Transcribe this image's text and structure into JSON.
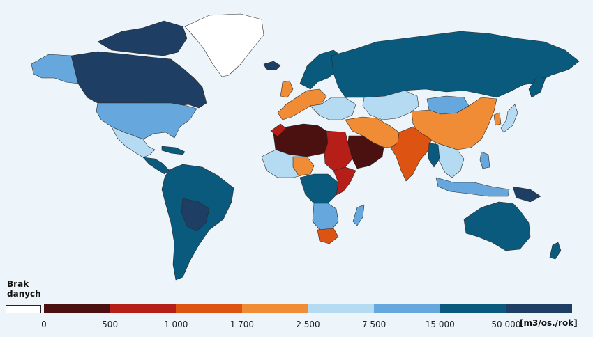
{
  "legend": {
    "no_data_label": "Brak\ndanych",
    "no_data_color": "#ffffff",
    "classes": [
      {
        "from": "0",
        "to": "500",
        "color": "#4b1010"
      },
      {
        "from": "500",
        "to": "1 000",
        "color": "#b51f17"
      },
      {
        "from": "1 000",
        "to": "1 700",
        "color": "#dd5412"
      },
      {
        "from": "1 700",
        "to": "2 500",
        "color": "#f08c36"
      },
      {
        "from": "2 500",
        "to": "7 500",
        "color": "#b5dbf2"
      },
      {
        "from": "7 500",
        "to": "15 000",
        "color": "#66a8dd"
      },
      {
        "from": "15 000",
        "to": "50 000",
        "color": "#0a5a7e"
      },
      {
        "from": "50 000",
        "to": "",
        "color": "#1e3f63"
      }
    ],
    "tick_labels": [
      "0",
      "500",
      "1 000",
      "1 700",
      "2 500",
      "7 500",
      "15 000",
      "50 000"
    ],
    "unit": "[m3/os./rok]"
  },
  "map": {
    "ocean_color": "#eef5fa",
    "border_color": "#2a2a2a",
    "regions": [
      {
        "name": "Greenland",
        "class": "no-data"
      },
      {
        "name": "Canada",
        "class": "50 000+"
      },
      {
        "name": "Alaska",
        "class": "7 500 - 15 000"
      },
      {
        "name": "United States",
        "class": "7 500 - 15 000"
      },
      {
        "name": "Mexico",
        "class": "2 500 - 7 500"
      },
      {
        "name": "Central America",
        "class": "15 000 - 50 000"
      },
      {
        "name": "South America",
        "class": "15 000 - 50 000"
      },
      {
        "name": "Russia",
        "class": "15 000 - 50 000"
      },
      {
        "name": "Scandinavia",
        "class": "15 000 - 50 000"
      },
      {
        "name": "Western Europe",
        "class": "1 700 - 2 500"
      },
      {
        "name": "Central Europe",
        "class": "2 500 - 7 500"
      },
      {
        "name": "Kazakhstan",
        "class": "2 500 - 7 500"
      },
      {
        "name": "Mongolia",
        "class": "7 500 - 15 000"
      },
      {
        "name": "China",
        "class": "1 700 - 2 500"
      },
      {
        "name": "India",
        "class": "1 000 - 1 700"
      },
      {
        "name": "Southeast Asia",
        "class": "2 500 - 7 500"
      },
      {
        "name": "Indonesia",
        "class": "7 500 - 15 000"
      },
      {
        "name": "Australia",
        "class": "15 000 - 50 000"
      },
      {
        "name": "North Africa",
        "class": "0 - 500"
      },
      {
        "name": "Arabian Peninsula",
        "class": "0 - 500"
      },
      {
        "name": "Egypt / Sudan",
        "class": "500 - 1 000"
      },
      {
        "name": "Iran / Middle East",
        "class": "1 700 - 2 500"
      },
      {
        "name": "West Africa",
        "class": "2 500 - 7 500"
      },
      {
        "name": "Central Africa",
        "class": "15 000 - 50 000"
      },
      {
        "name": "East Africa",
        "class": "500 - 1 000"
      },
      {
        "name": "Southern Africa",
        "class": "7 500 - 15 000"
      },
      {
        "name": "South Africa",
        "class": "1 000 - 1 700"
      },
      {
        "name": "Madagascar",
        "class": "7 500 - 15 000"
      },
      {
        "name": "Japan",
        "class": "2 500 - 7 500"
      },
      {
        "name": "New Zealand",
        "class": "15 000 - 50 000"
      }
    ]
  }
}
